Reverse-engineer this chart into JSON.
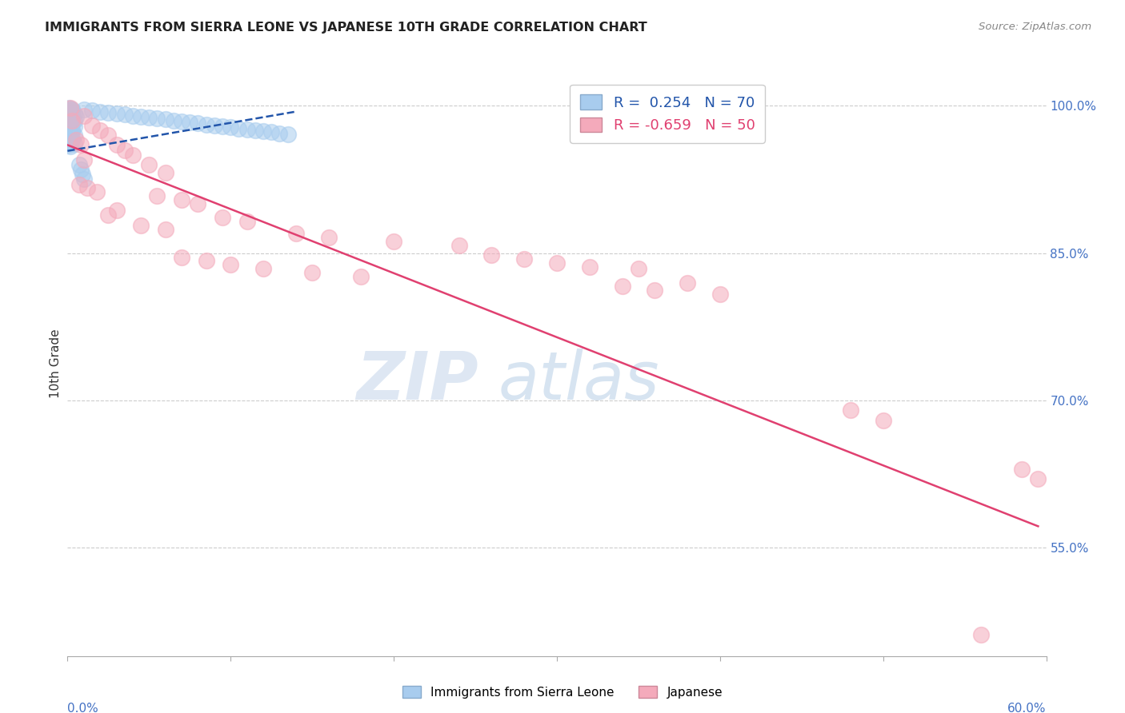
{
  "title": "IMMIGRANTS FROM SIERRA LEONE VS JAPANESE 10TH GRADE CORRELATION CHART",
  "source": "Source: ZipAtlas.com",
  "ylabel": "10th Grade",
  "ytick_labels": [
    "100.0%",
    "85.0%",
    "70.0%",
    "55.0%"
  ],
  "ytick_values": [
    1.0,
    0.85,
    0.7,
    0.55
  ],
  "xtick_values": [
    0.0,
    0.1,
    0.2,
    0.3,
    0.4,
    0.5,
    0.6
  ],
  "legend_blue_r": "0.254",
  "legend_blue_n": "70",
  "legend_pink_r": "-0.659",
  "legend_pink_n": "50",
  "blue_color": "#A8CCEE",
  "pink_color": "#F4AABB",
  "blue_line_color": "#2255AA",
  "pink_line_color": "#E04070",
  "blue_scatter": [
    [
      0.001,
      0.998
    ],
    [
      0.002,
      0.997
    ],
    [
      0.003,
      0.996
    ],
    [
      0.001,
      0.995
    ],
    [
      0.002,
      0.994
    ],
    [
      0.003,
      0.993
    ],
    [
      0.004,
      0.992
    ],
    [
      0.001,
      0.991
    ],
    [
      0.002,
      0.99
    ],
    [
      0.005,
      0.989
    ],
    [
      0.001,
      0.988
    ],
    [
      0.002,
      0.987
    ],
    [
      0.003,
      0.986
    ],
    [
      0.004,
      0.985
    ],
    [
      0.001,
      0.984
    ],
    [
      0.002,
      0.983
    ],
    [
      0.003,
      0.982
    ],
    [
      0.001,
      0.981
    ],
    [
      0.002,
      0.98
    ],
    [
      0.004,
      0.979
    ],
    [
      0.001,
      0.978
    ],
    [
      0.002,
      0.977
    ],
    [
      0.003,
      0.976
    ],
    [
      0.001,
      0.975
    ],
    [
      0.002,
      0.974
    ],
    [
      0.003,
      0.973
    ],
    [
      0.001,
      0.972
    ],
    [
      0.002,
      0.971
    ],
    [
      0.004,
      0.97
    ],
    [
      0.001,
      0.969
    ],
    [
      0.002,
      0.968
    ],
    [
      0.003,
      0.967
    ],
    [
      0.001,
      0.966
    ],
    [
      0.002,
      0.965
    ],
    [
      0.003,
      0.964
    ],
    [
      0.001,
      0.963
    ],
    [
      0.002,
      0.962
    ],
    [
      0.004,
      0.961
    ],
    [
      0.001,
      0.96
    ],
    [
      0.002,
      0.959
    ],
    [
      0.01,
      0.996
    ],
    [
      0.015,
      0.995
    ],
    [
      0.02,
      0.994
    ],
    [
      0.025,
      0.993
    ],
    [
      0.03,
      0.992
    ],
    [
      0.035,
      0.991
    ],
    [
      0.04,
      0.99
    ],
    [
      0.045,
      0.989
    ],
    [
      0.05,
      0.988
    ],
    [
      0.055,
      0.987
    ],
    [
      0.06,
      0.986
    ],
    [
      0.065,
      0.985
    ],
    [
      0.07,
      0.984
    ],
    [
      0.075,
      0.983
    ],
    [
      0.08,
      0.982
    ],
    [
      0.085,
      0.981
    ],
    [
      0.09,
      0.98
    ],
    [
      0.095,
      0.979
    ],
    [
      0.1,
      0.978
    ],
    [
      0.105,
      0.977
    ],
    [
      0.11,
      0.976
    ],
    [
      0.115,
      0.975
    ],
    [
      0.12,
      0.974
    ],
    [
      0.125,
      0.973
    ],
    [
      0.13,
      0.972
    ],
    [
      0.135,
      0.971
    ],
    [
      0.007,
      0.94
    ],
    [
      0.008,
      0.935
    ],
    [
      0.009,
      0.93
    ],
    [
      0.01,
      0.925
    ]
  ],
  "pink_scatter": [
    [
      0.002,
      0.998
    ],
    [
      0.01,
      0.99
    ],
    [
      0.003,
      0.985
    ],
    [
      0.015,
      0.98
    ],
    [
      0.02,
      0.975
    ],
    [
      0.025,
      0.97
    ],
    [
      0.005,
      0.965
    ],
    [
      0.008,
      0.96
    ],
    [
      0.03,
      0.96
    ],
    [
      0.035,
      0.955
    ],
    [
      0.04,
      0.95
    ],
    [
      0.01,
      0.945
    ],
    [
      0.05,
      0.94
    ],
    [
      0.06,
      0.932
    ],
    [
      0.007,
      0.92
    ],
    [
      0.012,
      0.916
    ],
    [
      0.018,
      0.912
    ],
    [
      0.055,
      0.908
    ],
    [
      0.07,
      0.904
    ],
    [
      0.08,
      0.9
    ],
    [
      0.03,
      0.894
    ],
    [
      0.025,
      0.889
    ],
    [
      0.095,
      0.886
    ],
    [
      0.11,
      0.882
    ],
    [
      0.045,
      0.878
    ],
    [
      0.06,
      0.874
    ],
    [
      0.14,
      0.87
    ],
    [
      0.16,
      0.866
    ],
    [
      0.2,
      0.862
    ],
    [
      0.24,
      0.858
    ],
    [
      0.07,
      0.846
    ],
    [
      0.085,
      0.842
    ],
    [
      0.1,
      0.838
    ],
    [
      0.12,
      0.834
    ],
    [
      0.15,
      0.83
    ],
    [
      0.18,
      0.826
    ],
    [
      0.3,
      0.84
    ],
    [
      0.32,
      0.836
    ],
    [
      0.28,
      0.844
    ],
    [
      0.26,
      0.848
    ],
    [
      0.35,
      0.834
    ],
    [
      0.38,
      0.82
    ],
    [
      0.34,
      0.816
    ],
    [
      0.36,
      0.812
    ],
    [
      0.4,
      0.808
    ],
    [
      0.48,
      0.69
    ],
    [
      0.5,
      0.68
    ],
    [
      0.585,
      0.63
    ],
    [
      0.595,
      0.62
    ],
    [
      0.56,
      0.462
    ]
  ],
  "watermark_zip": "ZIP",
  "watermark_atlas": "atlas",
  "xmin": 0.0,
  "xmax": 0.6,
  "ymin": 0.44,
  "ymax": 1.035,
  "blue_line_x": [
    0.0,
    0.14
  ],
  "blue_line_y": [
    0.954,
    0.994
  ],
  "pink_line_x": [
    0.0,
    0.595
  ],
  "pink_line_y": [
    0.96,
    0.572
  ]
}
